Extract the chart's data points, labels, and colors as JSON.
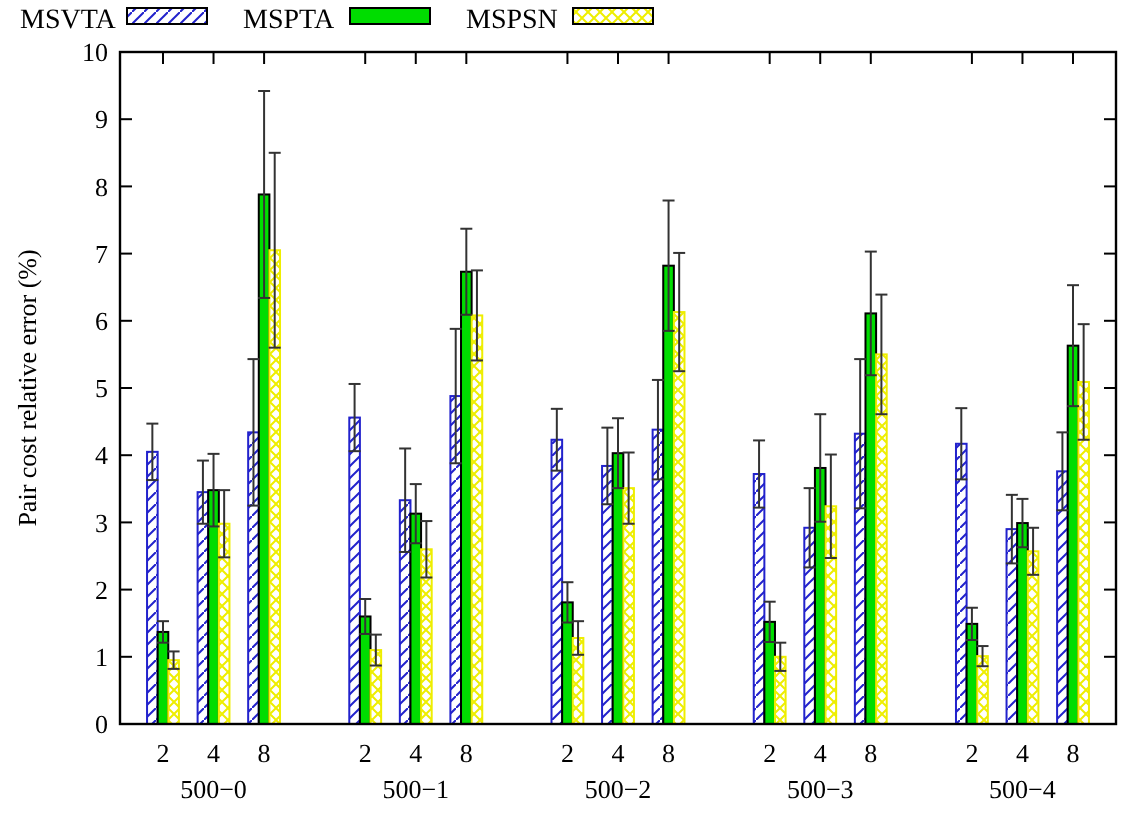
{
  "chart_data": {
    "type": "bar",
    "ylabel": "Pair cost relative error (%)",
    "categories": [
      "2",
      "4",
      "8",
      null,
      "2",
      "4",
      "8",
      null,
      "2",
      "4",
      "8",
      null,
      "2",
      "4",
      "8",
      null,
      "2",
      "4",
      "8"
    ],
    "annotations": [
      "500−0",
      "500−1",
      "500−2",
      "500−3",
      "500−4"
    ],
    "ylim": [
      0,
      10
    ],
    "yticks": [
      0,
      1,
      2,
      3,
      4,
      5,
      6,
      7,
      8,
      9,
      10
    ],
    "grid": false,
    "legend": "top left",
    "series": [
      {
        "name": "MSVTA",
        "color": "#2222cc",
        "values": [
          4.05,
          3.45,
          4.34,
          null,
          4.56,
          3.33,
          4.88,
          null,
          4.23,
          3.84,
          4.38,
          null,
          3.72,
          2.92,
          4.32,
          null,
          4.17,
          2.9,
          3.76
        ],
        "errors": [
          0.42,
          0.47,
          1.09,
          null,
          0.5,
          0.77,
          1.0,
          null,
          0.46,
          0.57,
          0.74,
          null,
          0.5,
          0.59,
          1.11,
          null,
          0.53,
          0.51,
          0.58
        ]
      },
      {
        "name": "MSPTA",
        "color": "#00dd00",
        "values": [
          1.37,
          3.48,
          7.88,
          null,
          1.6,
          3.13,
          6.73,
          null,
          1.81,
          4.03,
          6.82,
          null,
          1.52,
          3.81,
          6.11,
          null,
          1.49,
          2.99,
          5.63
        ],
        "errors": [
          0.16,
          0.54,
          1.54,
          null,
          0.26,
          0.44,
          0.64,
          null,
          0.3,
          0.52,
          0.97,
          null,
          0.3,
          0.8,
          0.92,
          null,
          0.24,
          0.36,
          0.9
        ]
      },
      {
        "name": "MSPSN",
        "color": "#eeee00",
        "values": [
          0.95,
          2.98,
          7.05,
          null,
          1.1,
          2.6,
          6.08,
          null,
          1.28,
          3.51,
          6.13,
          null,
          1.0,
          3.24,
          5.5,
          null,
          1.01,
          2.57,
          5.09
        ],
        "errors": [
          0.13,
          0.5,
          1.45,
          null,
          0.23,
          0.42,
          0.67,
          null,
          0.25,
          0.53,
          0.88,
          null,
          0.21,
          0.77,
          0.89,
          null,
          0.15,
          0.35,
          0.86
        ]
      }
    ]
  }
}
